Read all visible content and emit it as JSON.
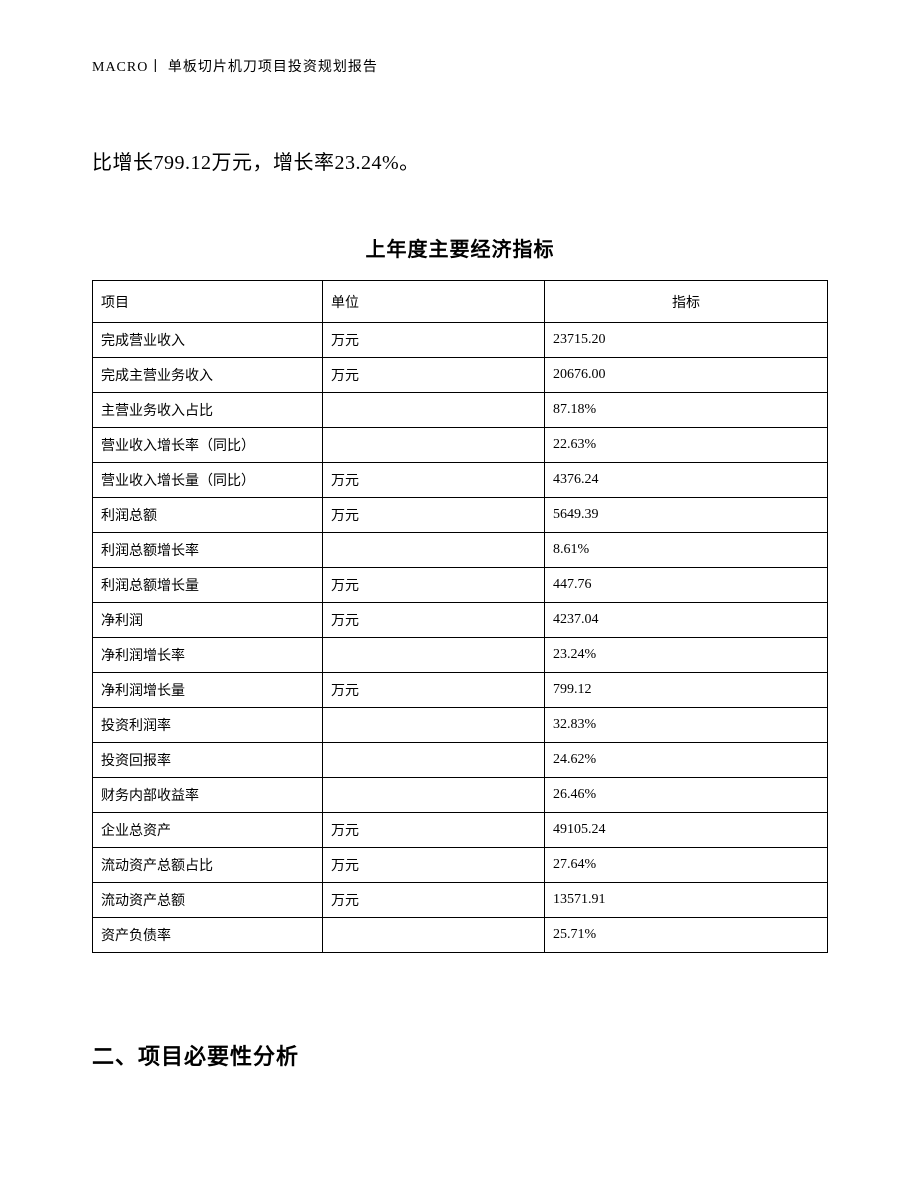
{
  "header": "MACRO丨 单板切片机刀项目投资规划报告",
  "body_line": "比增长799.12万元，增长率23.24%。",
  "table": {
    "title": "上年度主要经济指标",
    "columns": [
      "项目",
      "单位",
      "指标"
    ],
    "rows": [
      [
        "完成营业收入",
        "万元",
        "23715.20"
      ],
      [
        "完成主营业务收入",
        "万元",
        "20676.00"
      ],
      [
        "主营业务收入占比",
        "",
        "87.18%"
      ],
      [
        "营业收入增长率（同比）",
        "",
        "22.63%"
      ],
      [
        "营业收入增长量（同比）",
        "万元",
        "4376.24"
      ],
      [
        "利润总额",
        "万元",
        "5649.39"
      ],
      [
        "利润总额增长率",
        "",
        "8.61%"
      ],
      [
        "利润总额增长量",
        "万元",
        "447.76"
      ],
      [
        "净利润",
        "万元",
        "4237.04"
      ],
      [
        "净利润增长率",
        "",
        "23.24%"
      ],
      [
        "净利润增长量",
        "万元",
        "799.12"
      ],
      [
        "投资利润率",
        "",
        "32.83%"
      ],
      [
        "投资回报率",
        "",
        "24.62%"
      ],
      [
        "财务内部收益率",
        "",
        "26.46%"
      ],
      [
        "企业总资产",
        "万元",
        "49105.24"
      ],
      [
        "流动资产总额占比",
        "万元",
        "27.64%"
      ],
      [
        "流动资产总额",
        "万元",
        "13571.91"
      ],
      [
        "资产负债率",
        "",
        "25.71%"
      ]
    ]
  },
  "section_heading": "二、项目必要性分析"
}
